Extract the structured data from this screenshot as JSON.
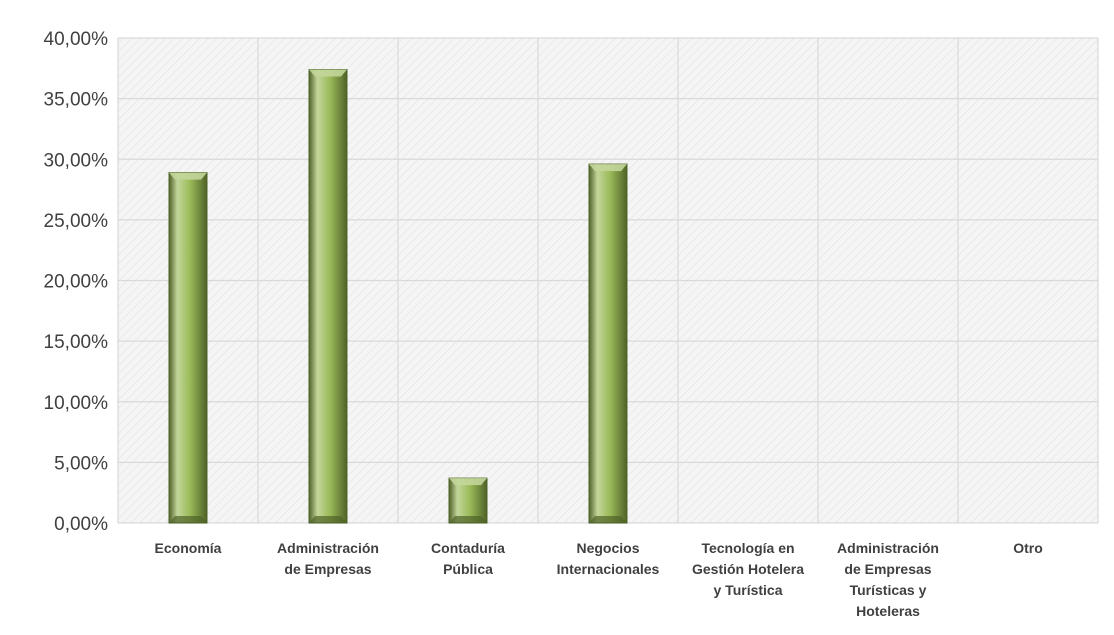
{
  "chart_data": {
    "type": "bar",
    "title": "",
    "xlabel": "",
    "ylabel": "",
    "categories": [
      [
        "Economía"
      ],
      [
        "Administración",
        "de Empresas"
      ],
      [
        "Contaduría",
        "Pública"
      ],
      [
        "Negocios",
        "Internacionales"
      ],
      [
        "Tecnología en",
        "Gestión Hotelera",
        "y Turística"
      ],
      [
        "Administración",
        "de Empresas",
        "Turísticas y",
        "Hoteleras"
      ],
      [
        "Otro"
      ]
    ],
    "values": [
      28.9,
      37.4,
      3.7,
      29.6,
      0,
      0,
      0
    ],
    "ylim": [
      0,
      40
    ],
    "yticks": [
      "0,00%",
      "5,00%",
      "10,00%",
      "15,00%",
      "20,00%",
      "25,00%",
      "30,00%",
      "35,00%",
      "40,00%"
    ],
    "grid": true,
    "legend": "none",
    "colors": {
      "bar_fill": "#9bbb59",
      "bar_light": "#c3d69b",
      "bar_dark": "#4f6228",
      "grid": "#d9d9d9",
      "plot_background": "#f2f2f2"
    }
  }
}
